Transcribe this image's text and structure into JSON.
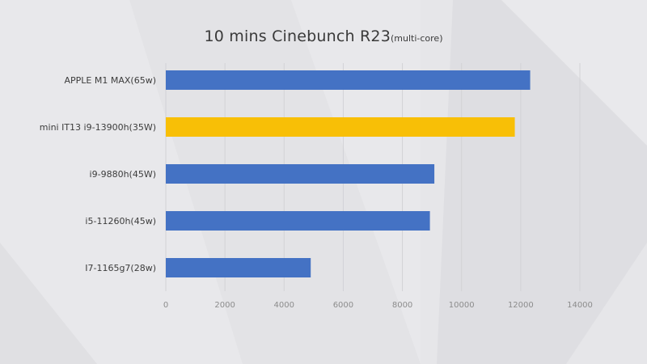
{
  "chart_data": {
    "type": "bar",
    "orientation": "horizontal",
    "title": "10 mins Cinebunch R23",
    "subtitle": "(multi-core)",
    "categories": [
      "APPLE M1 MAX(65w)",
      "mini IT13 i9-13900h(35W)",
      "i9-9880h(45W)",
      "i5-11260h(45w)",
      "I7-1165g7(28w)"
    ],
    "values": [
      12320,
      11800,
      9080,
      8930,
      4900
    ],
    "bar_colors": [
      "#4472c4",
      "#f8bf06",
      "#4472c4",
      "#4472c4",
      "#4472c4"
    ],
    "xlim": [
      0,
      14000
    ],
    "xticks": [
      "0",
      "2000",
      "4000",
      "6000",
      "8000",
      "10000",
      "12000",
      "14000"
    ],
    "grid": true,
    "legend": "none"
  }
}
